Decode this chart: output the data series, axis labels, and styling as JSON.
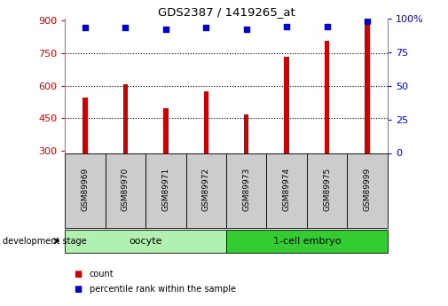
{
  "title": "GDS2387 / 1419265_at",
  "samples": [
    "GSM89969",
    "GSM89970",
    "GSM89971",
    "GSM89972",
    "GSM89973",
    "GSM89974",
    "GSM89975",
    "GSM89999"
  ],
  "counts": [
    545,
    607,
    495,
    572,
    468,
    735,
    805,
    895
  ],
  "percentile_ranks": [
    93,
    93,
    92,
    93,
    92,
    94,
    94,
    98
  ],
  "ylim_left": [
    290,
    910
  ],
  "ylim_right": [
    0,
    100
  ],
  "yticks_left": [
    300,
    450,
    600,
    750,
    900
  ],
  "yticks_right": [
    0,
    25,
    50,
    75,
    100
  ],
  "groups": [
    {
      "label": "oocyte",
      "start": 0,
      "end": 4,
      "color": "#b2f0b2"
    },
    {
      "label": "1-cell embryo",
      "start": 4,
      "end": 8,
      "color": "#33cc33"
    }
  ],
  "bar_color": "#cc0000",
  "dot_color": "#0000cc",
  "left_tick_color": "#cc0000",
  "right_tick_color": "#0000cc",
  "background_color": "#ffffff",
  "label_box_color": "#cccccc",
  "legend_count_color": "#cc0000",
  "legend_pct_color": "#0000cc",
  "bar_width": 0.12
}
